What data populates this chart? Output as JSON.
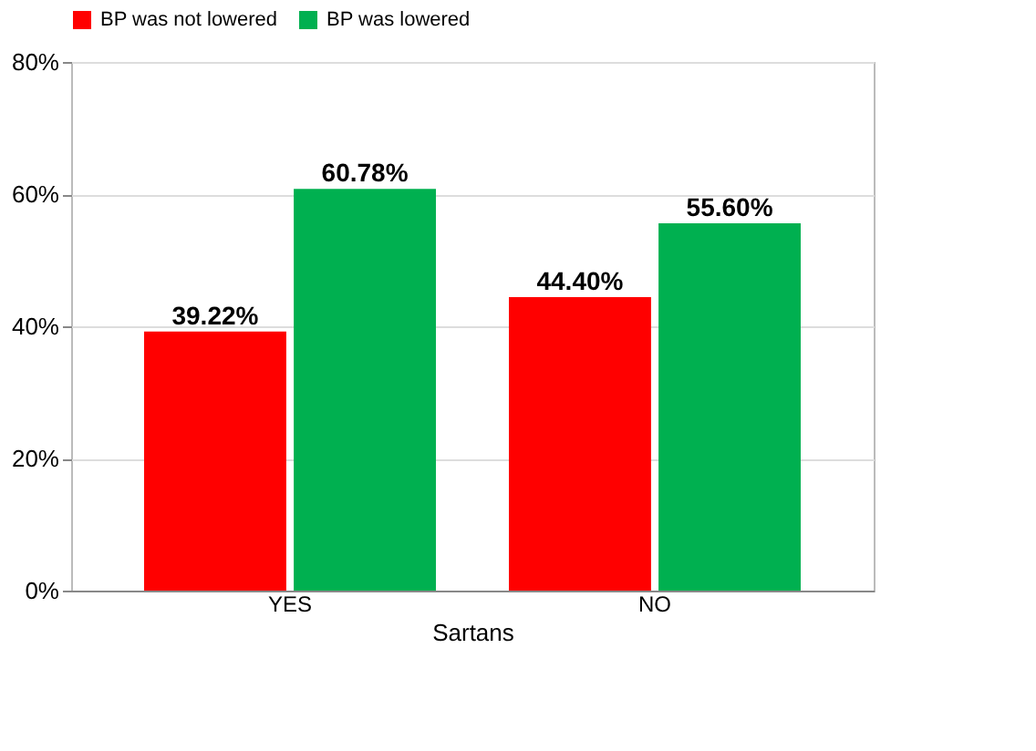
{
  "chart_data": {
    "type": "bar",
    "xlabel": "Sartans",
    "categories": [
      "YES",
      "NO"
    ],
    "series": [
      {
        "name": "BP was not lowered",
        "color": "#ff0000",
        "values": [
          39.22,
          44.4
        ],
        "value_labels": [
          "39.22%",
          "44.40%"
        ]
      },
      {
        "name": "BP was lowered",
        "color": "#00b050",
        "values": [
          60.78,
          55.6
        ],
        "value_labels": [
          "60.78%",
          "55.60%"
        ]
      }
    ],
    "ylim": [
      0,
      80
    ],
    "yticks": [
      {
        "value": 0,
        "label": "0%"
      },
      {
        "value": 20,
        "label": "20%"
      },
      {
        "value": 40,
        "label": "40%"
      },
      {
        "value": 60,
        "label": "60%"
      },
      {
        "value": 80,
        "label": "80%"
      }
    ],
    "grid": "y",
    "legend": "top"
  }
}
